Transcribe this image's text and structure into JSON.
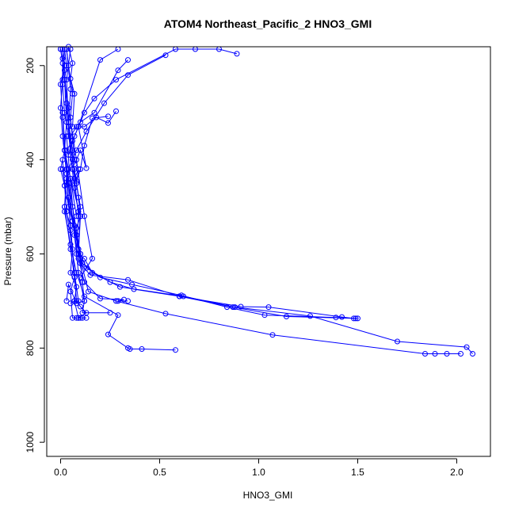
{
  "chart_data": {
    "type": "line",
    "title": "ATOM4 Northeast_Pacific_2 HNO3_GMI",
    "xlabel": "HNO3_GMI",
    "ylabel": "Pressure (mbar)",
    "xlim": [
      -0.07,
      2.17
    ],
    "ylim": [
      1030,
      160
    ],
    "y_reversed": true,
    "grid": false,
    "color": "#0000ff",
    "marker": "open-circle",
    "x_ticks": [
      0.0,
      0.5,
      1.0,
      1.5,
      2.0
    ],
    "x_tick_labels": [
      "0.0",
      "0.5",
      "1.0",
      "1.5",
      "2.0"
    ],
    "y_ticks": [
      200,
      400,
      600,
      800,
      1000
    ],
    "y_tick_labels": [
      "200",
      "400",
      "600",
      "800",
      "1000"
    ],
    "series": [
      {
        "x": [
          0.05,
          0.1,
          0.09,
          0.12,
          0.16,
          0.3,
          0.62,
          0.88,
          1.26,
          1.7,
          2.05,
          2.08
        ],
        "y": [
          440,
          520,
          600,
          610,
          640,
          670,
          690,
          713,
          732,
          786,
          798,
          812
        ]
      },
      {
        "x": [
          0.03,
          0.05,
          0.07,
          0.09,
          0.11,
          0.2,
          0.36,
          0.61,
          0.84,
          1.03,
          1.39,
          1.5
        ],
        "y": [
          350,
          450,
          540,
          590,
          620,
          650,
          665,
          688,
          713,
          730,
          735,
          737
        ]
      },
      {
        "x": [
          0.01,
          0.04,
          0.08,
          0.1,
          0.13,
          0.25,
          0.37,
          0.6,
          0.91,
          1.05,
          1.42,
          1.48
        ],
        "y": [
          420,
          500,
          560,
          600,
          630,
          660,
          675,
          690,
          712,
          713,
          734,
          737
        ]
      },
      {
        "x": [
          0.02,
          0.06,
          0.09,
          0.1,
          0.15,
          0.34,
          0.6,
          0.87,
          1.14,
          1.49
        ],
        "y": [
          455,
          530,
          590,
          620,
          645,
          655,
          690,
          713,
          733,
          737
        ]
      },
      {
        "x": [
          0.04,
          0.08,
          0.1,
          0.14,
          0.28,
          0.53,
          1.07,
          1.84,
          1.89,
          1.95,
          2.02
        ],
        "y": [
          480,
          560,
          610,
          680,
          700,
          727,
          772,
          812,
          812,
          812,
          812
        ]
      },
      {
        "x": [
          0.02,
          0.05,
          0.08,
          0.12,
          0.29,
          0.24,
          0.34,
          0.35,
          0.41,
          0.58
        ],
        "y": [
          510,
          580,
          640,
          690,
          730,
          771,
          800,
          802,
          802,
          804
        ]
      },
      {
        "x": [
          0.03,
          0.06,
          0.09,
          0.12,
          0.2,
          0.32,
          0.29,
          0.34
        ],
        "y": [
          420,
          530,
          610,
          660,
          695,
          697,
          700,
          700
        ]
      },
      {
        "x": [
          0.02,
          0.06,
          0.1,
          0.11,
          0.12,
          0.11,
          0.25
        ],
        "y": [
          380,
          500,
          600,
          660,
          700,
          725,
          725
        ]
      },
      {
        "x": [
          0.03,
          0.05,
          0.07,
          0.08,
          0.1,
          0.13,
          0.09
        ],
        "y": [
          440,
          540,
          640,
          700,
          712,
          725,
          736
        ]
      },
      {
        "x": [
          0.04,
          0.07,
          0.09,
          0.12,
          0.08,
          0.04,
          0.03
        ],
        "y": [
          450,
          560,
          640,
          700,
          705,
          665,
          700
        ]
      },
      {
        "x": [
          0.02,
          0.05,
          0.07,
          0.05,
          0.06,
          0.08,
          0.11,
          0.1,
          0.13
        ],
        "y": [
          500,
          590,
          650,
          680,
          736,
          736,
          736,
          736,
          736
        ]
      },
      {
        "x": [
          0.01,
          0.03,
          0.06,
          0.05,
          0.08,
          0.07,
          0.09
        ],
        "y": [
          400,
          510,
          590,
          640,
          670,
          700,
          736
        ]
      },
      {
        "x": [
          0.01,
          0.03,
          0.05,
          0.07,
          0.09,
          0.07,
          0.05
        ],
        "y": [
          300,
          420,
          550,
          640,
          700,
          700,
          705
        ]
      },
      {
        "x": [
          0.0,
          0.01,
          0.02,
          0.04,
          0.08,
          0.12,
          0.16,
          0.1
        ],
        "y": [
          165,
          195,
          230,
          290,
          400,
          520,
          610,
          650
        ]
      },
      {
        "x": [
          0.01,
          0.02,
          0.03,
          0.05,
          0.07,
          0.09,
          0.1
        ],
        "y": [
          165,
          210,
          280,
          390,
          460,
          510,
          520
        ]
      },
      {
        "x": [
          0.02,
          0.01,
          0.02,
          0.04,
          0.07,
          0.09,
          0.1,
          0.08
        ],
        "y": [
          165,
          240,
          300,
          350,
          420,
          480,
          520,
          545
        ]
      },
      {
        "x": [
          0.03,
          0.05,
          0.04,
          0.06,
          0.08,
          0.1,
          0.09
        ],
        "y": [
          165,
          250,
          330,
          400,
          450,
          500,
          600
        ]
      },
      {
        "x": [
          0.05,
          0.03,
          0.04,
          0.06,
          0.07,
          0.09,
          0.08
        ],
        "y": [
          165,
          230,
          320,
          380,
          440,
          520,
          600
        ]
      },
      {
        "x": [
          0.02,
          0.03,
          0.02,
          0.03,
          0.02,
          0.05,
          0.08
        ],
        "y": [
          165,
          200,
          230,
          320,
          380,
          440,
          520
        ]
      },
      {
        "x": [
          0.0,
          0.01,
          0.01,
          0.0,
          0.01,
          0.03,
          0.02,
          0.05
        ],
        "y": [
          165,
          185,
          230,
          290,
          350,
          430,
          500,
          540
        ]
      },
      {
        "x": [
          0.01,
          0.02,
          0.0,
          0.01,
          0.02,
          0.0,
          0.02
        ],
        "y": [
          165,
          200,
          240,
          310,
          380,
          420,
          455
        ]
      },
      {
        "x": [
          0.03,
          0.04,
          0.06,
          0.05,
          0.07
        ],
        "y": [
          165,
          200,
          260,
          310,
          400
        ]
      },
      {
        "x": [
          0.03,
          0.06,
          0.09,
          0.12,
          0.17,
          0.28,
          0.58,
          0.68,
          0.8,
          0.89
        ],
        "y": [
          380,
          360,
          330,
          300,
          270,
          230,
          165,
          165,
          165,
          175
        ]
      },
      {
        "x": [
          0.04,
          0.08,
          0.13,
          0.22,
          0.34,
          0.53
        ],
        "y": [
          420,
          380,
          340,
          280,
          220,
          178
        ]
      },
      {
        "x": [
          0.04,
          0.07,
          0.1,
          0.17,
          0.29,
          0.34
        ],
        "y": [
          390,
          350,
          320,
          300,
          210,
          188
        ]
      },
      {
        "x": [
          0.05,
          0.08,
          0.12,
          0.18,
          0.24,
          0.28
        ],
        "y": [
          350,
          330,
          330,
          310,
          322,
          297
        ]
      },
      {
        "x": [
          0.07,
          0.1,
          0.13,
          0.09,
          0.2,
          0.29
        ],
        "y": [
          410,
          380,
          418,
          330,
          188,
          165
        ]
      },
      {
        "x": [
          0.08,
          0.1,
          0.12,
          0.16,
          0.24
        ],
        "y": [
          445,
          420,
          370,
          312,
          308
        ]
      },
      {
        "x": [
          0.04,
          0.06,
          0.05,
          0.07,
          0.06
        ],
        "y": [
          160,
          195,
          228,
          260,
          330
        ]
      },
      {
        "x": [
          0.06,
          0.08,
          0.09,
          0.07
        ],
        "y": [
          420,
          450,
          420,
          440
        ]
      }
    ]
  }
}
